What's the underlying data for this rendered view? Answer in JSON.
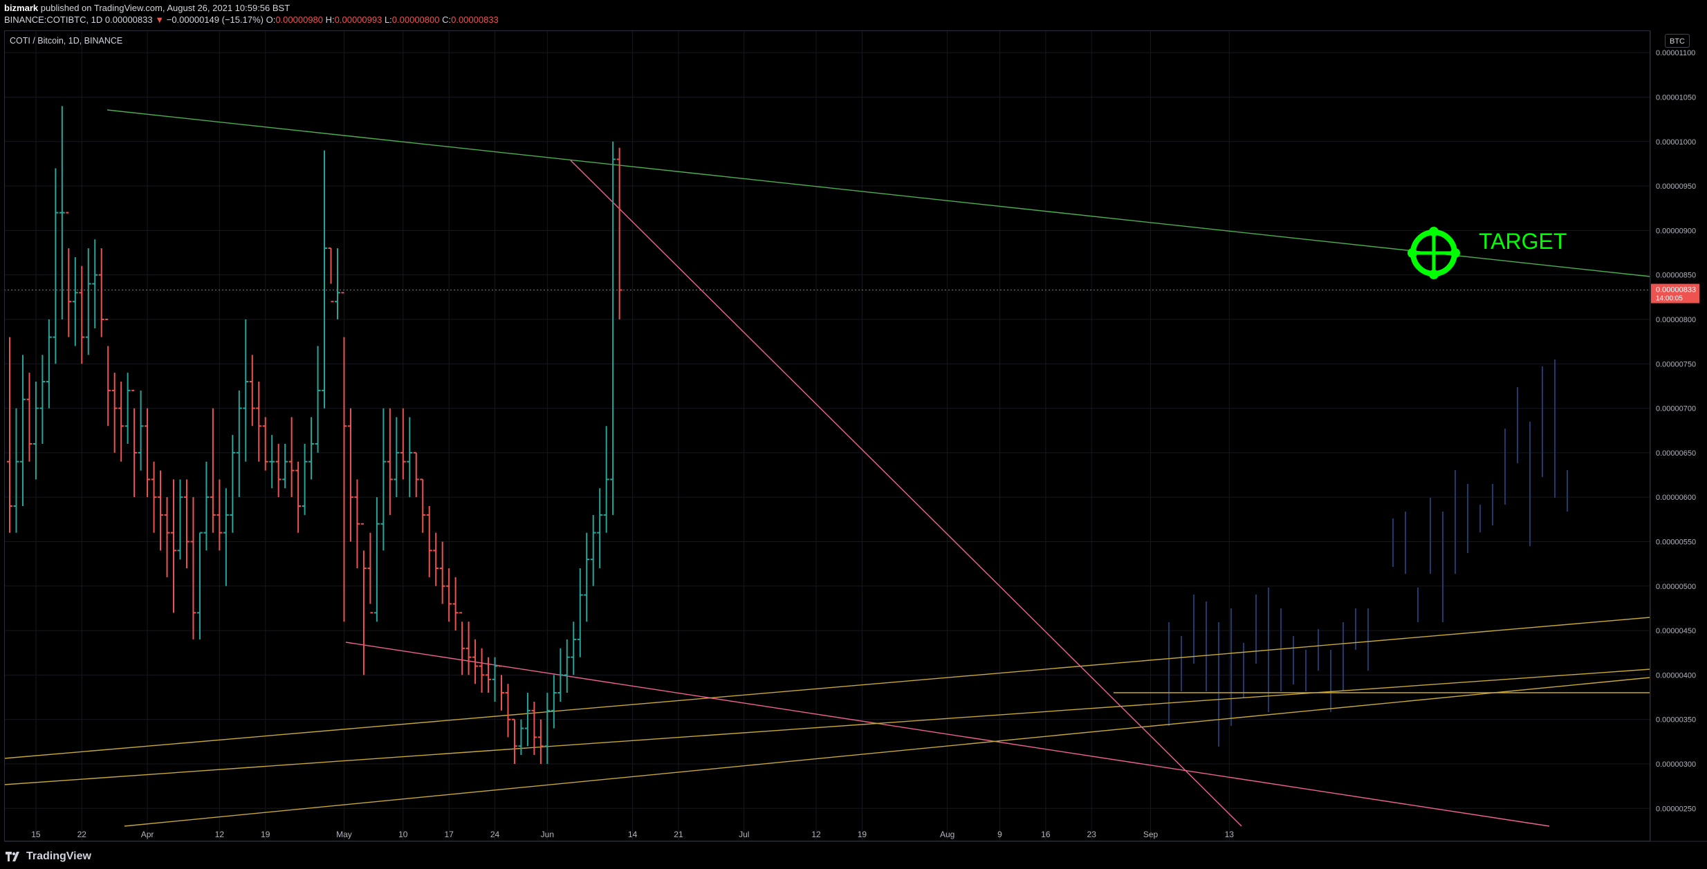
{
  "header": {
    "author": "bizmark",
    "published_text": "published on TradingView.com, August 26, 2021 10:59:56 BST",
    "symbol": "BINANCE:COTIBTC, 1D",
    "last_price": "0.00000833",
    "change_arrow": "▼",
    "change": "−0.00000149 (−15.17%)",
    "o_label": "O:",
    "o_value": "0.00000980",
    "h_label": "H:",
    "h_value": "0.00000993",
    "l_label": "L:",
    "l_value": "0.00000800",
    "c_label": "C:",
    "c_value": "0.00000833"
  },
  "legend": {
    "title": "COTI / Bitcoin, 1D, BINANCE"
  },
  "currency_button": "BTC",
  "footer": {
    "brand": "TradingView"
  },
  "colors": {
    "up": "#26a69a",
    "down": "#ef5350",
    "ghost": "#1e3a6e",
    "resistance": "#4caf50",
    "wedge": "#f06292",
    "support": "#c9a83a",
    "target": "#00ff00",
    "price_label_bg": "#ef5350"
  },
  "chart_data": {
    "type": "bar",
    "style": "ohlc",
    "annotation": "TARGET",
    "current_price_label": "0.00000833",
    "countdown_label": "14:00:05",
    "y_ticks": [
      "0.00001100",
      "0.00001050",
      "0.00001000",
      "0.00000950",
      "0.00000900",
      "0.00000850",
      "0.00000800",
      "0.00000750",
      "0.00000700",
      "0.00000650",
      "0.00000600",
      "0.00000550",
      "0.00000500",
      "0.00000450",
      "0.00000400",
      "0.00000350",
      "0.00000300",
      "0.00000250"
    ],
    "x_ticks": [
      "15",
      "22",
      "Apr",
      "12",
      "19",
      "May",
      "10",
      "17",
      "24",
      "Jun",
      "14",
      "21",
      "Jul",
      "12",
      "19",
      "Aug",
      "9",
      "16",
      "23",
      "Sep",
      "13"
    ],
    "ylim": [
      2.3e-06,
      1.125e-05
    ],
    "x_tick_dates": [
      "2021-03-15",
      "2021-03-22",
      "2021-04-01",
      "2021-04-12",
      "2021-04-19",
      "2021-05-01",
      "2021-05-10",
      "2021-05-17",
      "2021-05-24",
      "2021-06-01",
      "2021-06-14",
      "2021-06-21",
      "2021-07-01",
      "2021-07-12",
      "2021-07-19",
      "2021-08-01",
      "2021-08-09",
      "2021-08-16",
      "2021-08-23",
      "2021-09-01",
      "2021-09-13"
    ],
    "ohlc_dates": {
      "start": "2021-03-11",
      "end": "2021-08-26",
      "interval": "1D"
    },
    "ohlc_prices": [
      [
        640,
        780,
        560,
        590
      ],
      [
        590,
        700,
        560,
        640
      ],
      [
        640,
        760,
        590,
        710
      ],
      [
        710,
        740,
        640,
        660
      ],
      [
        660,
        730,
        620,
        700
      ],
      [
        700,
        760,
        660,
        730
      ],
      [
        730,
        800,
        700,
        780
      ],
      [
        780,
        970,
        750,
        920
      ],
      [
        920,
        1040,
        800,
        920
      ],
      [
        920,
        880,
        780,
        820
      ],
      [
        820,
        870,
        770,
        830
      ],
      [
        830,
        860,
        750,
        780
      ],
      [
        780,
        880,
        760,
        840
      ],
      [
        840,
        890,
        790,
        850
      ],
      [
        850,
        880,
        780,
        800
      ],
      [
        800,
        770,
        680,
        720
      ],
      [
        720,
        740,
        650,
        700
      ],
      [
        700,
        730,
        640,
        680
      ],
      [
        680,
        740,
        660,
        720
      ],
      [
        720,
        700,
        600,
        650
      ],
      [
        650,
        720,
        630,
        680
      ],
      [
        680,
        700,
        600,
        620
      ],
      [
        620,
        640,
        560,
        600
      ],
      [
        600,
        630,
        540,
        580
      ],
      [
        580,
        600,
        510,
        560
      ],
      [
        560,
        620,
        470,
        540
      ],
      [
        540,
        620,
        530,
        600
      ],
      [
        600,
        620,
        520,
        550
      ],
      [
        550,
        600,
        440,
        470
      ],
      [
        470,
        560,
        440,
        560
      ],
      [
        560,
        640,
        540,
        600
      ],
      [
        600,
        700,
        560,
        580
      ],
      [
        580,
        620,
        540,
        560
      ],
      [
        560,
        610,
        500,
        580
      ],
      [
        580,
        670,
        560,
        650
      ],
      [
        650,
        720,
        600,
        700
      ],
      [
        700,
        800,
        640,
        730
      ],
      [
        730,
        760,
        680,
        700
      ],
      [
        700,
        730,
        640,
        680
      ],
      [
        680,
        690,
        630,
        640
      ],
      [
        640,
        670,
        610,
        640
      ],
      [
        640,
        660,
        600,
        620
      ],
      [
        620,
        660,
        610,
        640
      ],
      [
        640,
        690,
        600,
        630
      ],
      [
        630,
        640,
        560,
        590
      ],
      [
        590,
        660,
        580,
        640
      ],
      [
        640,
        690,
        620,
        660
      ],
      [
        660,
        770,
        650,
        720
      ],
      [
        720,
        990,
        700,
        880
      ],
      [
        880,
        880,
        840,
        820
      ],
      [
        820,
        880,
        800,
        830
      ],
      [
        830,
        780,
        460,
        680
      ],
      [
        680,
        700,
        550,
        600
      ],
      [
        600,
        620,
        520,
        570
      ],
      [
        570,
        540,
        400,
        520
      ],
      [
        520,
        560,
        480,
        470
      ],
      [
        470,
        600,
        460,
        570
      ],
      [
        570,
        700,
        540,
        640
      ],
      [
        640,
        700,
        580,
        620
      ],
      [
        620,
        690,
        600,
        650
      ],
      [
        650,
        700,
        620,
        640
      ],
      [
        640,
        690,
        600,
        650
      ],
      [
        650,
        650,
        600,
        620
      ],
      [
        620,
        620,
        560,
        580
      ],
      [
        580,
        590,
        510,
        540
      ],
      [
        540,
        560,
        500,
        520
      ],
      [
        520,
        550,
        480,
        500
      ],
      [
        500,
        520,
        460,
        480
      ],
      [
        480,
        510,
        450,
        470
      ],
      [
        470,
        460,
        400,
        430
      ],
      [
        430,
        460,
        400,
        420
      ],
      [
        420,
        440,
        390,
        410
      ],
      [
        410,
        430,
        380,
        400
      ],
      [
        400,
        420,
        380,
        395
      ],
      [
        395,
        420,
        370,
        410
      ],
      [
        410,
        400,
        360,
        380
      ],
      [
        380,
        390,
        330,
        350
      ],
      [
        350,
        350,
        300,
        320
      ],
      [
        320,
        350,
        310,
        340
      ],
      [
        340,
        380,
        320,
        360
      ],
      [
        360,
        370,
        310,
        330
      ],
      [
        330,
        350,
        300,
        320
      ],
      [
        320,
        380,
        300,
        360
      ],
      [
        360,
        400,
        340,
        380
      ],
      [
        380,
        430,
        370,
        400
      ],
      [
        400,
        440,
        380,
        420
      ],
      [
        420,
        460,
        400,
        440
      ],
      [
        440,
        520,
        420,
        490
      ],
      [
        490,
        560,
        460,
        530
      ],
      [
        530,
        580,
        500,
        560
      ],
      [
        560,
        610,
        520,
        580
      ],
      [
        580,
        680,
        560,
        620
      ],
      [
        620,
        1000,
        580,
        980
      ],
      [
        980,
        993,
        800,
        833
      ]
    ],
    "ghost_projection": "faded blue bars continuing after the last candle",
    "trendlines": [
      {
        "name": "resistance",
        "color": "green"
      },
      {
        "name": "wedge-upper",
        "color": "pink"
      },
      {
        "name": "wedge-lower",
        "color": "pink"
      },
      {
        "name": "support-1",
        "color": "yellow"
      },
      {
        "name": "support-2",
        "color": "yellow"
      },
      {
        "name": "support-3",
        "color": "yellow"
      }
    ]
  }
}
